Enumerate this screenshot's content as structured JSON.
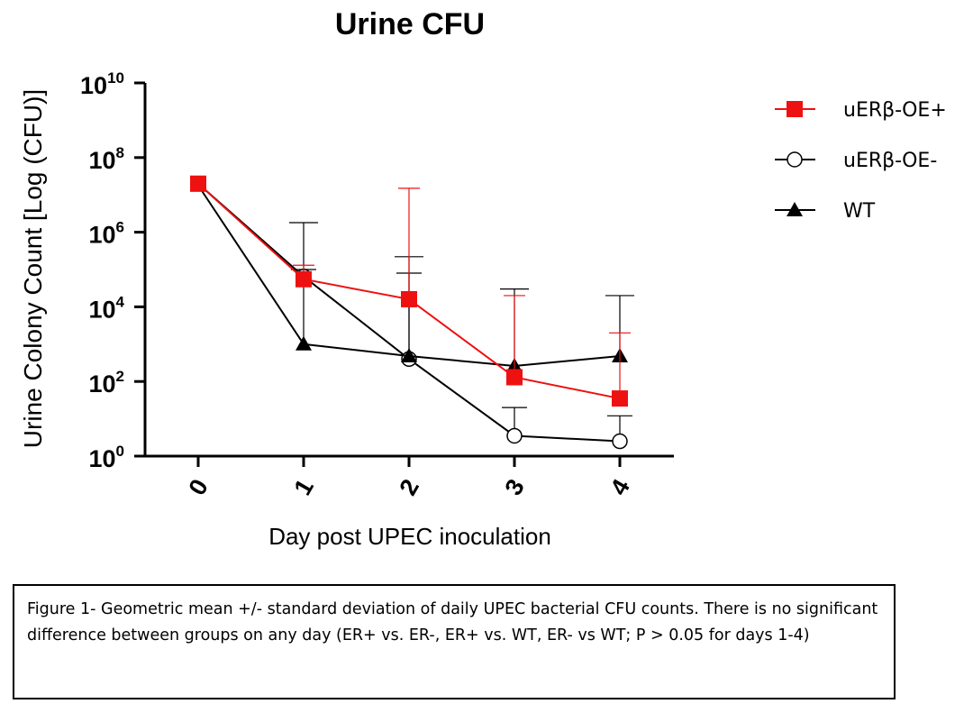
{
  "chart_data": {
    "type": "line",
    "title": "Urine CFU",
    "xlabel": "Day post UPEC inoculation",
    "ylabel": "Urine Colony Count [Log (CFU)]",
    "x": [
      0,
      1,
      2,
      3,
      4
    ],
    "x_tick_labels": [
      "0",
      "1",
      "2",
      "3",
      "4"
    ],
    "y_scale": "log",
    "ylim": [
      1,
      10000000000
    ],
    "y_ticks": [
      {
        "value": 1,
        "base": "10",
        "exp": "0"
      },
      {
        "value": 100,
        "base": "10",
        "exp": "2"
      },
      {
        "value": 10000,
        "base": "10",
        "exp": "4"
      },
      {
        "value": 1000000,
        "base": "10",
        "exp": "6"
      },
      {
        "value": 100000000,
        "base": "10",
        "exp": "8"
      },
      {
        "value": 10000000000,
        "base": "10",
        "exp": "10"
      }
    ],
    "legend_position": "top-right",
    "series": [
      {
        "name": "uERβ-OE+",
        "color": "#ee1111",
        "marker": "square",
        "values": [
          20000000,
          55000,
          16000,
          130,
          35
        ],
        "error_upper": [
          20000000,
          130000,
          15000000,
          20000,
          2000
        ]
      },
      {
        "name": "uERβ-OE-",
        "color": "#000000",
        "marker": "open-circle",
        "values": [
          20000000,
          65000,
          400,
          3.5,
          2.5
        ],
        "error_upper": [
          20000000,
          100000,
          80000,
          20,
          12
        ]
      },
      {
        "name": "WT",
        "color": "#000000",
        "marker": "triangle",
        "values": [
          18000000,
          1000,
          480,
          260,
          480
        ],
        "error_upper": [
          18000000,
          1800000,
          220000,
          30000,
          20000
        ]
      }
    ]
  },
  "caption": "Figure 1- Geometric mean +/- standard deviation of daily UPEC bacterial CFU counts. There is no significant difference between groups on any day (ER+ vs. ER-, ER+ vs. WT, ER- vs WT; P > 0.05 for days 1-4)"
}
